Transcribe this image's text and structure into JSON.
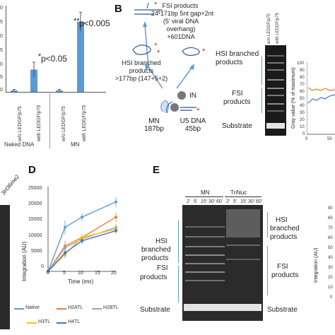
{
  "panelA": {
    "pval1": "p<0.05",
    "pval2": "p<0.005",
    "star1": "*",
    "star2": "**",
    "lane_labels": [
      "w/o LEDGF/p75",
      "with LEDGF/p75",
      "w/o LEDGF/p75",
      "with LEDGF/p75"
    ],
    "group_labels": [
      "Naked DNA",
      "MN"
    ],
    "y_ticks": [
      "0",
      "5",
      "0",
      "5",
      "0",
      "5",
      "0"
    ],
    "bar_values": [
      0.3,
      4.5,
      0.3,
      14.2
    ],
    "bar_errors": [
      0.2,
      1.5,
      0.2,
      1.9
    ],
    "bar_color": "#5b9bd5"
  },
  "panelB": {
    "letter": "B",
    "fsi_title": "FSI products",
    "fsi_line2": "24-171bp 5nt gap+2nt",
    "fsi_line3": "(5' viral DNA",
    "fsi_line4": "overhang)",
    "fsi_line5": "+601DNA",
    "hsi_line1": "HSI branched",
    "hsi_line2": "products",
    "hsi_line3": ">177bp (147+5+2)",
    "in_label": "IN",
    "mn_label": "MN",
    "mn_size": "187bp",
    "u5_label": "U5 DNA",
    "u5_size": "45bp",
    "gel_lane_labels": [
      "w/o LEDGF/p75",
      "with LEDGF/p75"
    ],
    "gel_hsi": "HSI branched",
    "gel_hsi2": "products",
    "gel_fsi": "FSI",
    "gel_fsi2": "products",
    "gel_substrate": "Substrate",
    "graph_ylabel": "Gray value (% of maximum)",
    "graph_yticks": [
      "100",
      "90",
      "80",
      "70",
      "60",
      "50",
      "40",
      "30",
      "20",
      "10",
      "0"
    ],
    "graph_xticks": [
      "0",
      "50"
    ],
    "orange": "#e87722",
    "blue": "#4472c4"
  },
  "panelC": {
    "label": "3H36me2"
  },
  "panelD": {
    "letter": "D",
    "ylabel": "Integration (AU)",
    "xlabel": "Time (mn)",
    "y_ticks": [
      "25000",
      "20000",
      "15000",
      "10000",
      "5000",
      "0"
    ],
    "x_ticks": [
      "0",
      "5",
      "10",
      "15",
      "20"
    ],
    "legend": [
      "Native",
      "H2ATL",
      "H2BTL",
      "H3TL",
      "H4TL"
    ]
  },
  "chart_data": {
    "type": "line",
    "x": [
      0,
      5,
      10,
      20
    ],
    "xlabel": "Time (mn)",
    "ylabel": "Integration (AU)",
    "ylim": [
      0,
      25000
    ],
    "series": [
      {
        "name": "Native",
        "color": "#5b9bd5",
        "values": [
          0,
          13000,
          16000,
          20500
        ],
        "errors": [
          0,
          2000,
          1200,
          1500
        ]
      },
      {
        "name": "H2ATL",
        "color": "#ed7d31",
        "values": [
          0,
          7500,
          10000,
          16000
        ],
        "errors": [
          0,
          1500,
          1000,
          1400
        ]
      },
      {
        "name": "H2BTL",
        "color": "#a5a5a5",
        "values": [
          0,
          7000,
          9500,
          13000
        ],
        "errors": [
          0,
          1200,
          900,
          1000
        ]
      },
      {
        "name": "H3TL",
        "color": "#ffc000",
        "values": [
          0,
          5000,
          10000,
          12500
        ],
        "errors": [
          0,
          1200,
          900,
          900
        ]
      },
      {
        "name": "H4TL",
        "color": "#4472c4",
        "values": [
          0,
          5500,
          9000,
          12000
        ],
        "errors": [
          0,
          1300,
          900,
          800
        ]
      }
    ]
  },
  "panelE": {
    "letter": "E",
    "group1": "MN",
    "group2": "TriNuc",
    "times": [
      "2'",
      "5'",
      "15'",
      "30'",
      "60'"
    ],
    "hsi1": "HSI",
    "hsi2": "branched",
    "hsi3": "products",
    "fsi1": "FSI",
    "fsi2": "products",
    "substrate": "Substrate",
    "r_hsi1": "HSI",
    "r_hsi2": "branched",
    "r_hsi3": "products",
    "r_fsi1": "FSI",
    "r_fsi2": "products",
    "r_substrate": "Substrate",
    "right_ylabel": "Integration (AU)",
    "right_yticks": [
      "90",
      "80",
      "70",
      "60",
      "50",
      "40",
      "30",
      "20",
      "10",
      "0"
    ]
  }
}
